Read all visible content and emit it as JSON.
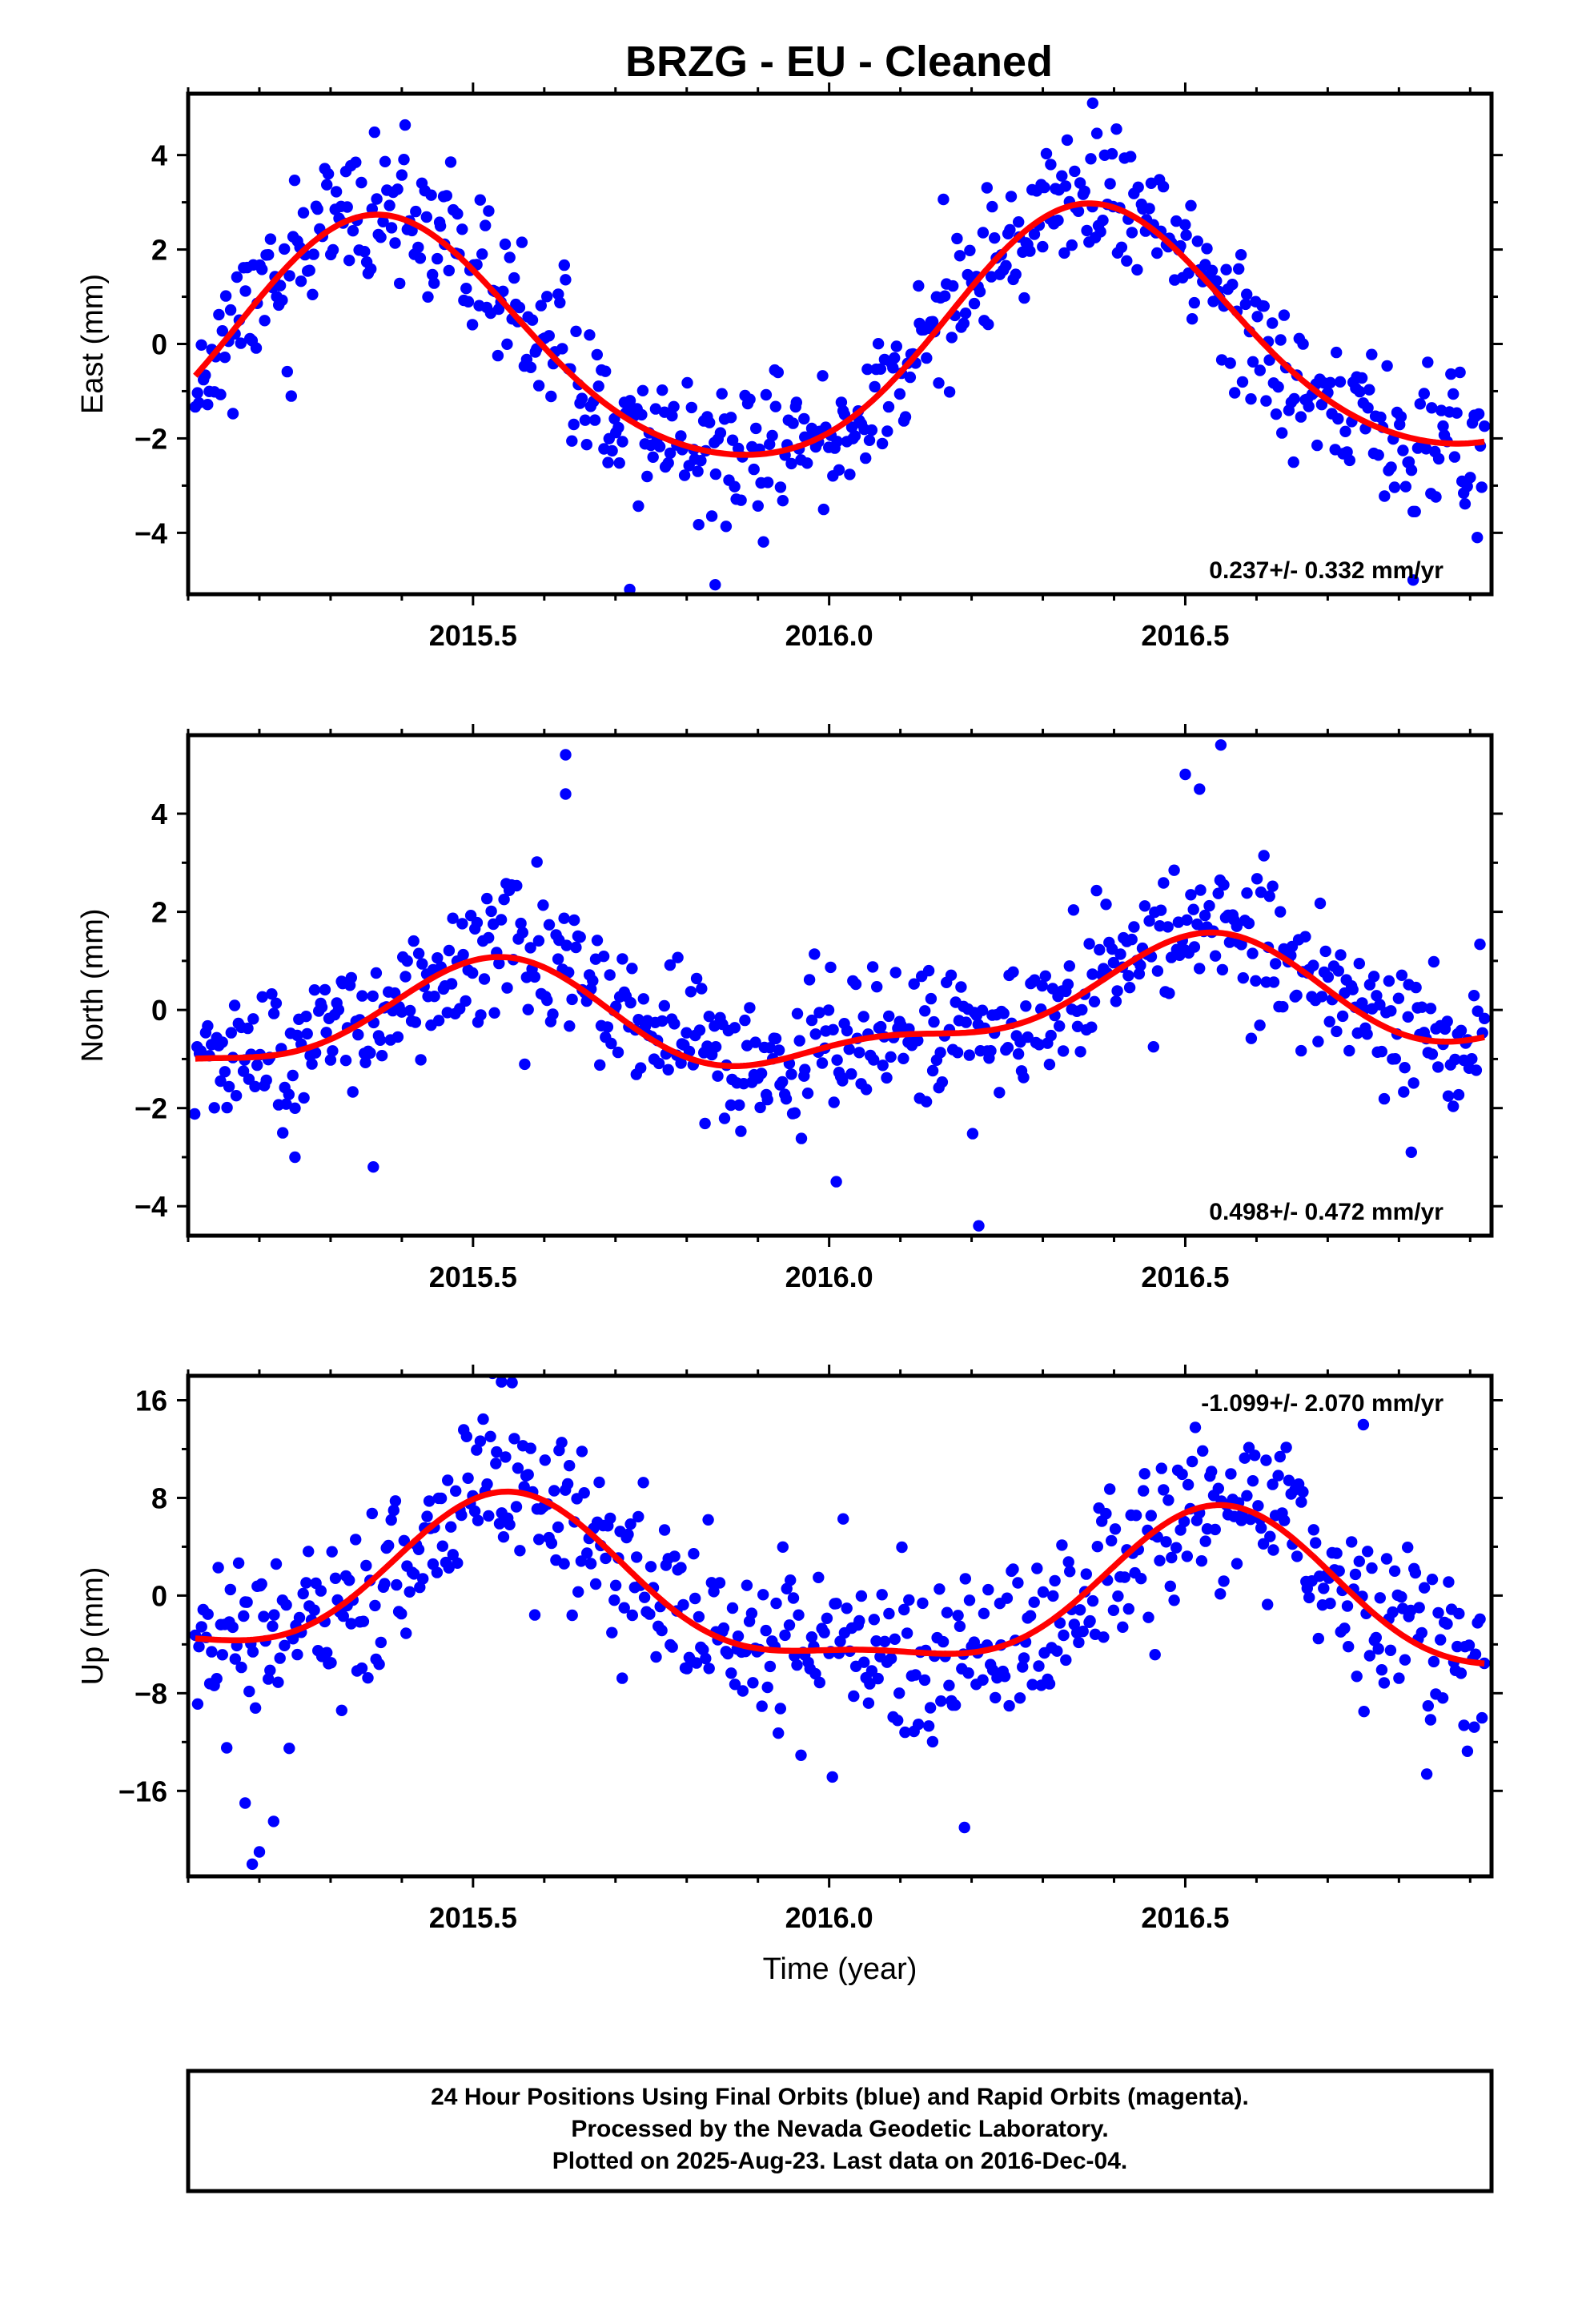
{
  "title": "BRZG  - EU - Cleaned",
  "footer": {
    "lines": [
      "24 Hour Positions Using Final Orbits (blue) and Rapid Orbits (magenta).",
      "Processed by the Nevada Geodetic Laboratory.",
      "Plotted on 2025-Aug-23. Last data on 2016-Dec-04."
    ]
  },
  "colors": {
    "final_orbits": "#0000ff",
    "rapid_orbits": "#ff00ff",
    "model": "#ff0000",
    "frame": "#000000"
  },
  "chart_data": [
    {
      "type": "scatter",
      "component": "east",
      "ylabel": "East (mm)",
      "xlabel": "",
      "xlim": [
        2015.1,
        2016.93
      ],
      "ylim": [
        -5.3,
        5.3
      ],
      "x_ticks": [
        2015.5,
        2016.0,
        2016.5
      ],
      "x_tick_labels": [
        "2015.5",
        "2016.0",
        "2016.5"
      ],
      "y_ticks": [
        -4,
        -2,
        0,
        2,
        4
      ],
      "y_tick_labels": [
        "−4",
        "−2",
        "0",
        "2",
        "4"
      ],
      "rate_label": "0.237+/- 0.332 mm/yr",
      "rate_position": "bottom-right",
      "model": {
        "mean": 0,
        "trend": 0.237,
        "annual_amp": 2.6,
        "annual_peak": 0.37,
        "semi_amp": 0.3,
        "semi_peak": 0.35
      },
      "noise_sd": 0.75,
      "n_points": 620,
      "data_start": 2015.11,
      "data_end": 2016.92,
      "seed": 11,
      "outliers": [
        [
          2016.37,
          5.1
        ],
        [
          2015.72,
          -5.2
        ],
        [
          2015.84,
          -5.1
        ],
        [
          2016.82,
          -5.0
        ],
        [
          2016.91,
          -4.1
        ]
      ]
    },
    {
      "type": "scatter",
      "component": "north",
      "ylabel": "North (mm)",
      "xlabel": "",
      "xlim": [
        2015.1,
        2016.93
      ],
      "ylim": [
        -4.6,
        5.6
      ],
      "x_ticks": [
        2015.5,
        2016.0,
        2016.5
      ],
      "x_tick_labels": [
        "2015.5",
        "2016.0",
        "2016.5"
      ],
      "y_ticks": [
        -4,
        -2,
        0,
        2,
        4
      ],
      "y_tick_labels": [
        "−4",
        "−2",
        "0",
        "2",
        "4"
      ],
      "rate_label": "0.498+/- 0.472 mm/yr",
      "rate_position": "bottom-right",
      "model": {
        "mean": -0.1,
        "trend": 0.498,
        "annual_amp": 1.0,
        "annual_peak": 0.5,
        "semi_amp": 0.45,
        "semi_peak": 0.05
      },
      "noise_sd": 0.72,
      "n_points": 620,
      "data_start": 2015.11,
      "data_end": 2016.92,
      "seed": 23,
      "outliers": [
        [
          2015.63,
          5.2
        ],
        [
          2015.63,
          4.4
        ],
        [
          2016.5,
          4.8
        ],
        [
          2016.52,
          4.5
        ],
        [
          2016.55,
          5.4
        ],
        [
          2016.01,
          -3.5
        ],
        [
          2016.21,
          -4.4
        ],
        [
          2015.36,
          -3.2
        ],
        [
          2015.25,
          -3.0
        ]
      ]
    },
    {
      "type": "scatter",
      "component": "up",
      "ylabel": "Up (mm)",
      "xlabel": "Time (year)",
      "xlim": [
        2015.1,
        2016.93
      ],
      "ylim": [
        -23,
        18
      ],
      "x_ticks": [
        2015.5,
        2016.0,
        2016.5
      ],
      "x_tick_labels": [
        "2015.5",
        "2016.0",
        "2016.5"
      ],
      "y_ticks": [
        -16,
        -8,
        0,
        8,
        16
      ],
      "y_tick_labels": [
        "−16",
        "−8",
        "0",
        "8",
        "16"
      ],
      "rate_label": "-1.099+/- 2.070 mm/yr",
      "rate_position": "top-right",
      "model": {
        "mean": -0.2,
        "trend": -1.099,
        "annual_amp": 6.2,
        "annual_peak": 0.55,
        "semi_amp": 2.0,
        "semi_peak": 0.05
      },
      "noise_sd": 3.5,
      "n_points": 620,
      "data_start": 2015.11,
      "data_end": 2016.92,
      "seed": 37,
      "outliers": [
        [
          2015.54,
          17.5
        ],
        [
          2016.75,
          14.0
        ],
        [
          2015.19,
          -22.0
        ],
        [
          2015.2,
          -21.0
        ],
        [
          2016.19,
          -19.0
        ],
        [
          2015.22,
          -18.5
        ],
        [
          2015.18,
          -17.0
        ]
      ]
    }
  ]
}
